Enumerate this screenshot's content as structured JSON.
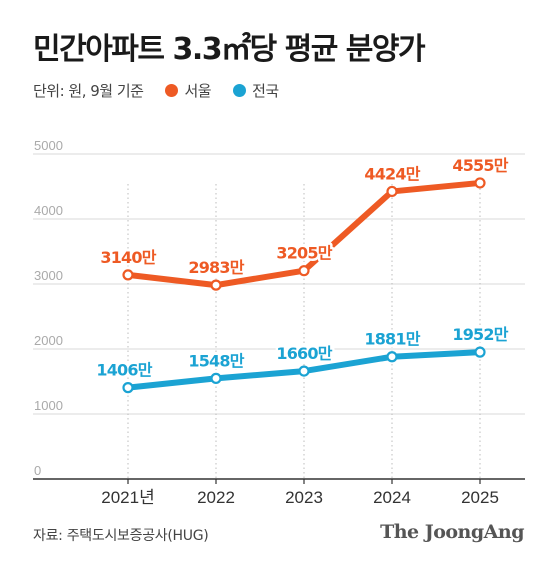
{
  "header": {
    "title": "민간아파트 3.3㎡당 평균 분양가",
    "unit_note": "단위: 원, 9월 기준"
  },
  "footer": {
    "source": "자료: 주택도시보증공사(HUG)",
    "brand": "The JoongAng"
  },
  "colors": {
    "seoul": "#ee5a24",
    "national": "#1ba3d3",
    "grid": "#d9d9d9"
  },
  "chart_data": {
    "type": "line",
    "categories": [
      "2021년",
      "2022",
      "2023",
      "2024",
      "2025"
    ],
    "ylim": [
      0,
      5000
    ],
    "yticks": [
      "0",
      "1000",
      "2000",
      "3000",
      "4000",
      "5000"
    ],
    "grid": true,
    "legend": "top-left",
    "series": [
      {
        "name": "서울",
        "values": [
          3140,
          2983,
          3205,
          4424,
          4555
        ],
        "labels": [
          "3140만",
          "2983만",
          "3205만",
          "4424만",
          "4555만"
        ]
      },
      {
        "name": "전국",
        "values": [
          1406,
          1548,
          1660,
          1881,
          1952
        ],
        "labels": [
          "1406만",
          "1548만",
          "1660만",
          "1881만",
          "1952만"
        ]
      }
    ]
  }
}
